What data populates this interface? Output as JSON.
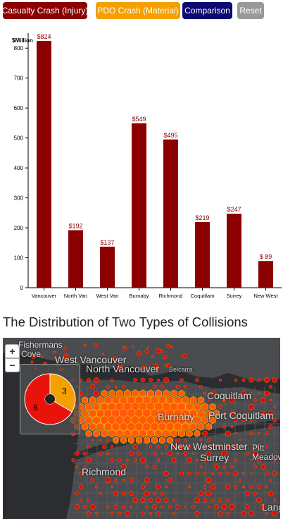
{
  "buttons": {
    "casualty": {
      "label": "Casualty Crash (Injury)",
      "color": "#8b0000"
    },
    "pdo": {
      "label": "PDO Crash (Material)",
      "color": "#f5a000"
    },
    "comparison": {
      "label": "Comparison",
      "color": "#0a0a70"
    },
    "reset": {
      "label": "Reset",
      "color": "#999999"
    }
  },
  "heading": "The Distribution of Two Types of Collisions",
  "chart_data": {
    "type": "bar",
    "categories": [
      "Vancouver",
      "North Van",
      "West Van",
      "Burnaby",
      "Richmond",
      "Coquitlam",
      "Surrey",
      "New West"
    ],
    "values": [
      824,
      192,
      137,
      549,
      495,
      219,
      247,
      89
    ],
    "data_labels": [
      "$824",
      "$192",
      "$137",
      "$549",
      "$495",
      "$219",
      "$247",
      "$ 89"
    ],
    "ylabel": "$Million",
    "ylim": [
      0,
      850
    ],
    "yticks": [
      0,
      100,
      200,
      300,
      400,
      500,
      600,
      700,
      800
    ],
    "bar_color": "#8b0000",
    "grid": false
  },
  "map": {
    "zoom_in": "+",
    "zoom_out": "−",
    "places": {
      "fishermans": "Fishermans",
      "cove": "Cove",
      "west_van": "West Vancouver",
      "north_van": "North Vancouver",
      "belcarra": "Belcarra",
      "coquitlam": "Coquitlam",
      "port_coquitlam": "Port Coquitlam",
      "burnaby": "Burnaby",
      "new_westminster": "New Westminster",
      "pitt_meadows": "Pitt Meadows",
      "richmond": "Richmond",
      "surrey": "Surrey",
      "langley": "Lang"
    },
    "donut": {
      "values": [
        3,
        6
      ],
      "labels": [
        "3",
        "6"
      ],
      "colors": [
        "#f5a000",
        "#e8140c"
      ]
    },
    "colors": {
      "water": "#2b2d30",
      "land": "#4a4c4f",
      "hex_fill": "#ff5a0a",
      "hex_stroke": "#ffb400",
      "dot_fill": "#e10b0b"
    }
  }
}
